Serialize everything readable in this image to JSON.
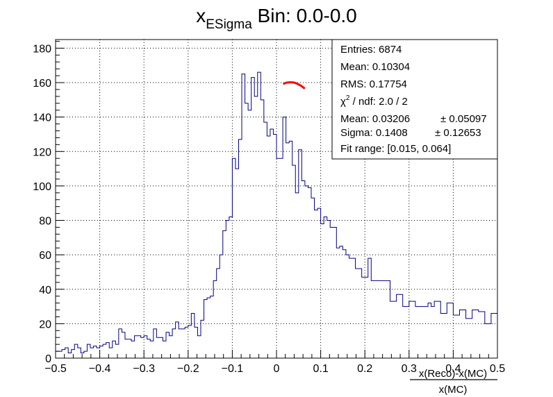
{
  "chart_data": {
    "type": "histogram",
    "title": {
      "main": "x",
      "subscript": "ESigma",
      "rest": " Bin: 0.0-0.0"
    },
    "xlabel": {
      "numerator": "x(Reco)-x(MC)",
      "denominator": "x(MC)"
    },
    "ylabel": "",
    "xlim": [
      -0.5,
      0.5
    ],
    "ylim": [
      0,
      185
    ],
    "xticks": [
      -0.5,
      -0.4,
      -0.3,
      -0.2,
      -0.1,
      0,
      0.1,
      0.2,
      0.3,
      0.4,
      0.5
    ],
    "xtick_labels": [
      "−0.5",
      "−0.4",
      "−0.3",
      "−0.2",
      "−0.1",
      "0",
      "0.1",
      "0.2",
      "0.3",
      "0.4",
      "0.5"
    ],
    "yticks": [
      0,
      20,
      40,
      60,
      80,
      100,
      120,
      140,
      160,
      180
    ],
    "ytick_labels": [
      "0",
      "20",
      "40",
      "60",
      "80",
      "100",
      "120",
      "140",
      "160",
      "180"
    ],
    "grid": true,
    "line_color": "#000080",
    "fit_color": "#ff0000",
    "bins": {
      "low": -0.5,
      "width": 0.01,
      "counts": [
        4,
        4,
        5,
        6,
        3,
        5,
        8,
        6,
        3,
        4,
        8,
        6,
        7,
        6,
        7,
        8,
        9,
        6,
        10,
        8,
        17,
        15,
        11,
        11,
        10,
        13,
        13,
        12,
        13,
        11,
        10,
        17,
        12,
        12,
        10,
        15,
        13,
        17,
        21,
        17,
        17,
        18,
        19,
        26,
        18,
        13,
        22,
        34,
        35,
        36,
        45,
        52,
        60,
        74,
        80,
        82,
        116,
        110,
        127,
        165,
        148,
        144,
        163,
        152,
        166,
        150,
        137,
        129,
        133,
        130,
        116,
        116,
        140,
        125,
        126,
        112,
        96,
        121,
        103,
        100,
        99,
        93,
        86,
        87,
        78,
        82,
        80,
        76,
        76,
        64,
        65,
        63,
        60,
        58,
        58,
        52,
        52,
        47,
        47,
        58,
        45,
        45,
        45,
        45,
        45,
        45,
        33,
        33,
        37,
        37,
        30,
        30,
        33,
        33,
        30,
        30,
        30,
        30,
        32,
        30,
        33,
        33,
        26,
        26,
        32,
        32,
        25,
        25,
        28,
        28,
        23,
        23,
        28,
        28,
        27,
        27,
        20,
        20,
        26,
        26
      ]
    },
    "fit_points": [
      [
        0.015,
        159.2
      ],
      [
        0.023,
        160.0
      ],
      [
        0.032,
        160.2
      ],
      [
        0.04,
        160.0
      ],
      [
        0.048,
        159.2
      ],
      [
        0.056,
        158.1
      ],
      [
        0.064,
        156.5
      ]
    ],
    "stats_box": {
      "entries": "Entries: 6874",
      "mean": "Mean: 0.10304",
      "rms": "RMS: 0.17754",
      "chi2_prefix": "χ",
      "chi2_sup": "2",
      "chi2_rest": " / ndf: 2.0 / 2",
      "fit_mean": "Mean: 0.03206",
      "fit_mean_err": "± 0.05097",
      "sigma": "Sigma: 0.1408",
      "sigma_err": "± 0.12653",
      "fit_range": "Fit range: [0.015, 0.064]"
    }
  }
}
